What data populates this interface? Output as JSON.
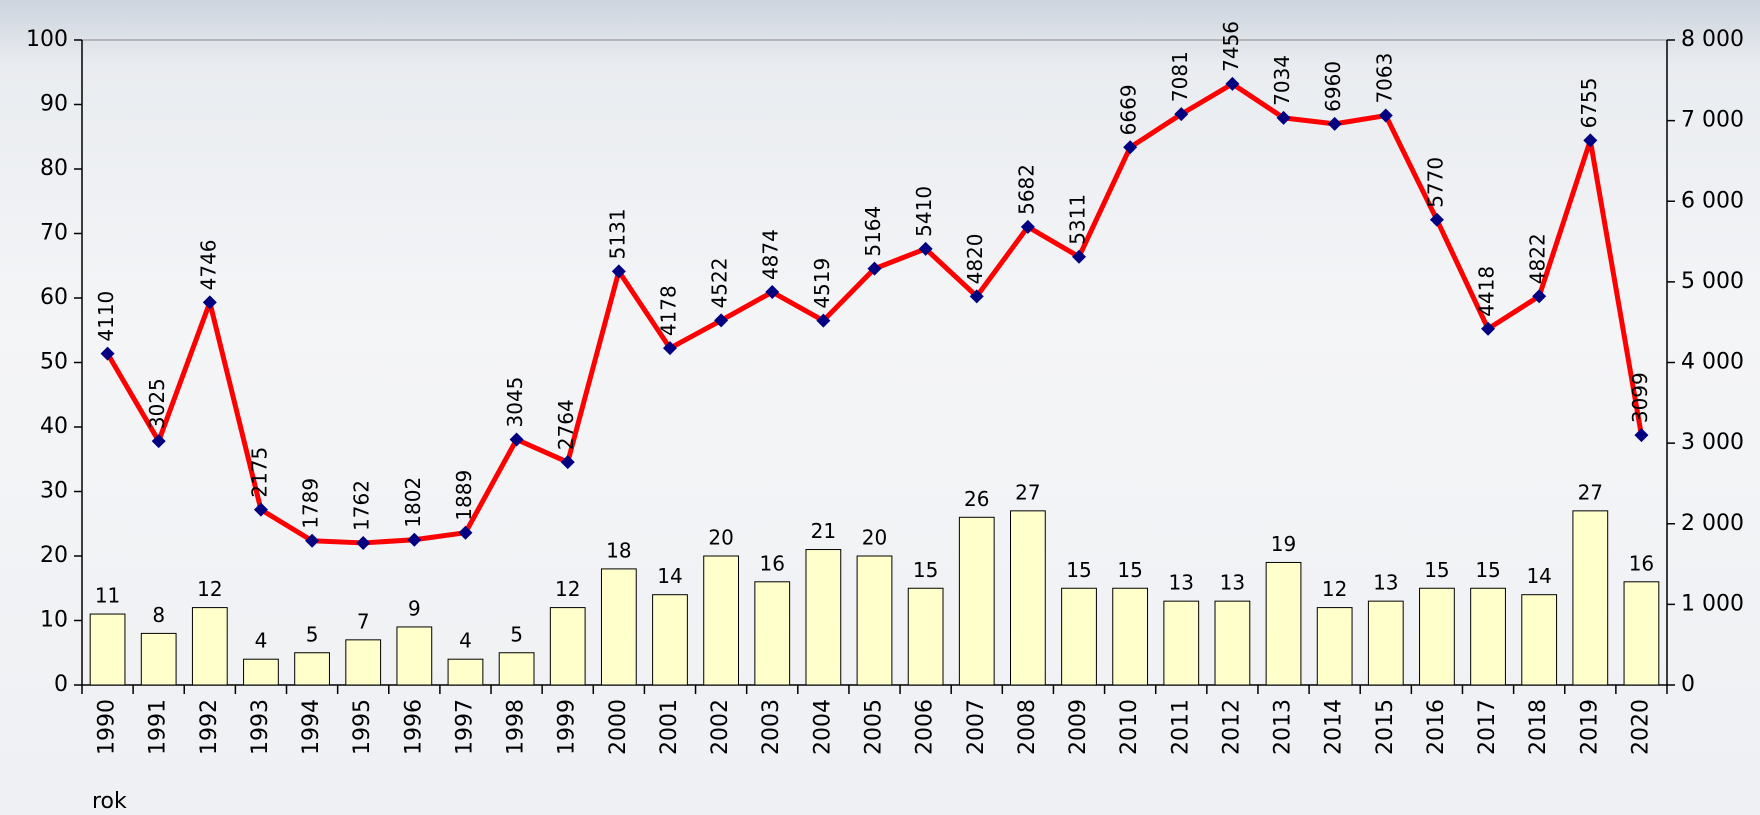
{
  "chart_data": {
    "type": "combo",
    "x_label": "rok",
    "categories": [
      "1990",
      "1991",
      "1992",
      "1993",
      "1994",
      "1995",
      "1996",
      "1997",
      "1998",
      "1999",
      "2000",
      "2001",
      "2002",
      "2003",
      "2004",
      "2005",
      "2006",
      "2007",
      "2008",
      "2009",
      "2010",
      "2011",
      "2012",
      "2013",
      "2014",
      "2015",
      "2016",
      "2017",
      "2018",
      "2019",
      "2020"
    ],
    "series": [
      {
        "type": "bar",
        "color": "#ffffcc",
        "values": [
          11,
          8,
          12,
          4,
          5,
          7,
          9,
          4,
          5,
          12,
          18,
          14,
          20,
          16,
          21,
          20,
          15,
          26,
          27,
          15,
          15,
          13,
          13,
          19,
          12,
          13,
          15,
          15,
          14,
          27,
          16
        ]
      },
      {
        "type": "line",
        "axis": "y2",
        "color": "#ff0000",
        "marker_color": "#000080",
        "values": [
          4110,
          3025,
          4746,
          2175,
          1789,
          1762,
          1802,
          1889,
          3045,
          2764,
          5131,
          4178,
          4522,
          4874,
          4519,
          5164,
          5410,
          4820,
          5682,
          5311,
          6669,
          7081,
          7456,
          7034,
          6960,
          7063,
          5770,
          4418,
          4822,
          6755,
          3099
        ]
      }
    ],
    "ylim": [
      0,
      100
    ],
    "yticks": [
      0,
      10,
      20,
      30,
      40,
      50,
      60,
      70,
      80,
      90,
      100
    ],
    "y2lim": [
      0,
      8000
    ],
    "y2ticks": [
      0,
      {
        "value": 1000,
        "label": "1 000"
      },
      {
        "value": 2000,
        "label": "2 000"
      },
      {
        "value": 3000,
        "label": "3 000"
      },
      {
        "value": 4000,
        "label": "4 000"
      },
      {
        "value": 5000,
        "label": "5 000"
      },
      {
        "value": 6000,
        "label": "6 000"
      },
      {
        "value": 7000,
        "label": "7 000"
      },
      {
        "value": 8000,
        "label": "8 000"
      }
    ]
  }
}
